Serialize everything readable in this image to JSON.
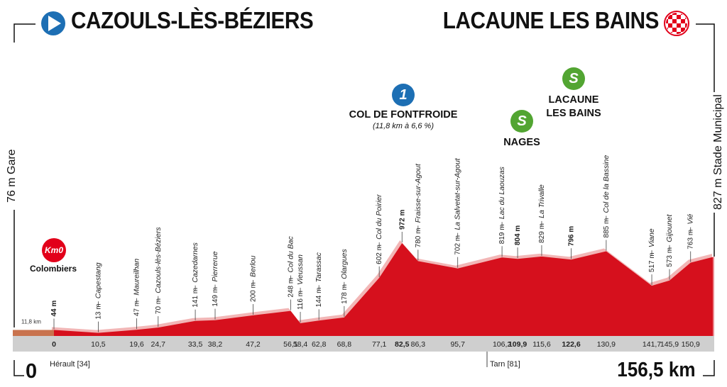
{
  "stage": {
    "start_town": "CAZOULS-LÈS-BÉZIERS",
    "finish_town": "LACAUNE LES BAINS",
    "start_point": "76 m  Gare",
    "finish_point": "827 m  Stade Municipal",
    "start_distance": "0",
    "total_distance": "156,5 km",
    "departments": [
      "Hérault [34]",
      "Tarn [81]"
    ],
    "neutral_km": "11,8 km",
    "km0_badge": "Km0",
    "km0_place": "Colombiers"
  },
  "climbs": [
    {
      "badge": "1",
      "name": "COL DE FONTFROIDE",
      "details": "(11,8 km à 6,6 %)",
      "km": 82.5
    }
  ],
  "sprints": [
    {
      "badge": "S",
      "name": "NAGES",
      "km": 109.9
    },
    {
      "badge": "S",
      "name": "LACAUNE\nLES BAINS",
      "line1": "LACAUNE",
      "line2": "LES BAINS",
      "km": 122.6
    }
  ],
  "chart_data": {
    "type": "area",
    "xlabel": "",
    "ylabel": "",
    "x_unit": "km",
    "y_unit": "m",
    "xlim": [
      -11.8,
      156.5
    ],
    "ylim": [
      0,
      1000
    ],
    "profile": [
      {
        "km": -11.8,
        "alt": 44
      },
      {
        "km": 0,
        "alt": 44
      },
      {
        "km": 10.5,
        "alt": 13
      },
      {
        "km": 19.6,
        "alt": 47
      },
      {
        "km": 24.7,
        "alt": 70
      },
      {
        "km": 33.5,
        "alt": 141
      },
      {
        "km": 38.2,
        "alt": 149
      },
      {
        "km": 47.2,
        "alt": 200
      },
      {
        "km": 56.1,
        "alt": 248
      },
      {
        "km": 58.4,
        "alt": 116
      },
      {
        "km": 62.8,
        "alt": 144
      },
      {
        "km": 68.8,
        "alt": 178
      },
      {
        "km": 77.1,
        "alt": 602
      },
      {
        "km": 82.5,
        "alt": 972
      },
      {
        "km": 86.3,
        "alt": 780
      },
      {
        "km": 95.7,
        "alt": 702
      },
      {
        "km": 106.2,
        "alt": 819
      },
      {
        "km": 109.9,
        "alt": 804
      },
      {
        "km": 115.6,
        "alt": 829
      },
      {
        "km": 122.6,
        "alt": 796
      },
      {
        "km": 130.9,
        "alt": 885
      },
      {
        "km": 141.7,
        "alt": 517
      },
      {
        "km": 145.9,
        "alt": 573
      },
      {
        "km": 150.9,
        "alt": 763
      },
      {
        "km": 156.5,
        "alt": 827
      }
    ],
    "waypoints": [
      {
        "name": "",
        "alt_label": "44 m",
        "km_label": "0",
        "km": 0,
        "alt": 44,
        "bold": true
      },
      {
        "name": "Capestang",
        "alt_label": "13 m",
        "km_label": "10,5",
        "km": 10.5,
        "alt": 13
      },
      {
        "name": "Maureilhan",
        "alt_label": "47 m",
        "km_label": "19,6",
        "km": 19.6,
        "alt": 47
      },
      {
        "name": "Cazouls-lès-Béziers",
        "alt_label": "70 m",
        "km_label": "24,7",
        "km": 24.7,
        "alt": 70
      },
      {
        "name": "Cazedarnes",
        "alt_label": "141 m",
        "km_label": "33,5",
        "km": 33.5,
        "alt": 141
      },
      {
        "name": "Pierrerue",
        "alt_label": "149 m",
        "km_label": "38,2",
        "km": 38.2,
        "alt": 149
      },
      {
        "name": "Berlou",
        "alt_label": "200 m",
        "km_label": "47,2",
        "km": 47.2,
        "alt": 200
      },
      {
        "name": "Col du Bac",
        "alt_label": "248 m",
        "km_label": "56,1",
        "km": 56.1,
        "alt": 248
      },
      {
        "name": "Vieussan",
        "alt_label": "116 m",
        "km_label": "58,4",
        "km": 58.4,
        "alt": 116
      },
      {
        "name": "Tarassac",
        "alt_label": "144 m",
        "km_label": "62,8",
        "km": 62.8,
        "alt": 144
      },
      {
        "name": "Olargues",
        "alt_label": "178 m",
        "km_label": "68,8",
        "km": 68.8,
        "alt": 178
      },
      {
        "name": "Col du Poirier",
        "alt_label": "602 m",
        "km_label": "77,1",
        "km": 77.1,
        "alt": 602
      },
      {
        "name": "",
        "alt_label": "972 m",
        "km_label": "82,5",
        "km": 82.5,
        "alt": 972,
        "bold": true
      },
      {
        "name": "Fraisse-sur-Agout",
        "alt_label": "780 m",
        "km_label": "86,3",
        "km": 86.3,
        "alt": 780
      },
      {
        "name": "La Salvetat-sur-Agout",
        "alt_label": "702 m",
        "km_label": "95,7",
        "km": 95.7,
        "alt": 702
      },
      {
        "name": "Lac du Laouzas",
        "alt_label": "819 m",
        "km_label": "106,2",
        "km": 106.2,
        "alt": 819
      },
      {
        "name": "",
        "alt_label": "804 m",
        "km_label": "109,9",
        "km": 109.9,
        "alt": 804,
        "bold": true
      },
      {
        "name": "La Trivalle",
        "alt_label": "829 m",
        "km_label": "115,6",
        "km": 115.6,
        "alt": 829
      },
      {
        "name": "",
        "alt_label": "796 m",
        "km_label": "122,6",
        "km": 122.6,
        "alt": 796,
        "bold": true
      },
      {
        "name": "Col de la Bassine",
        "alt_label": "885 m",
        "km_label": "130,9",
        "km": 130.9,
        "alt": 885
      },
      {
        "name": "Viane",
        "alt_label": "517 m",
        "km_label": "141,7",
        "km": 141.7,
        "alt": 517
      },
      {
        "name": "Gijounet",
        "alt_label": "573 m",
        "km_label": "145,9",
        "km": 145.9,
        "alt": 573
      },
      {
        "name": "Vié",
        "alt_label": "763 m",
        "km_label": "150,9",
        "km": 150.9,
        "alt": 763
      }
    ],
    "colors": {
      "profile_fill": "#d6101d",
      "profile_shadow": "#f2b6b6",
      "neutral_fill": "#c9734e",
      "baseline": "#cfcfcf",
      "kom": "#1d6fb4",
      "sprint": "#52a532",
      "start_icon": "#1d6fb4",
      "finish_icon": "#e2001a"
    }
  }
}
